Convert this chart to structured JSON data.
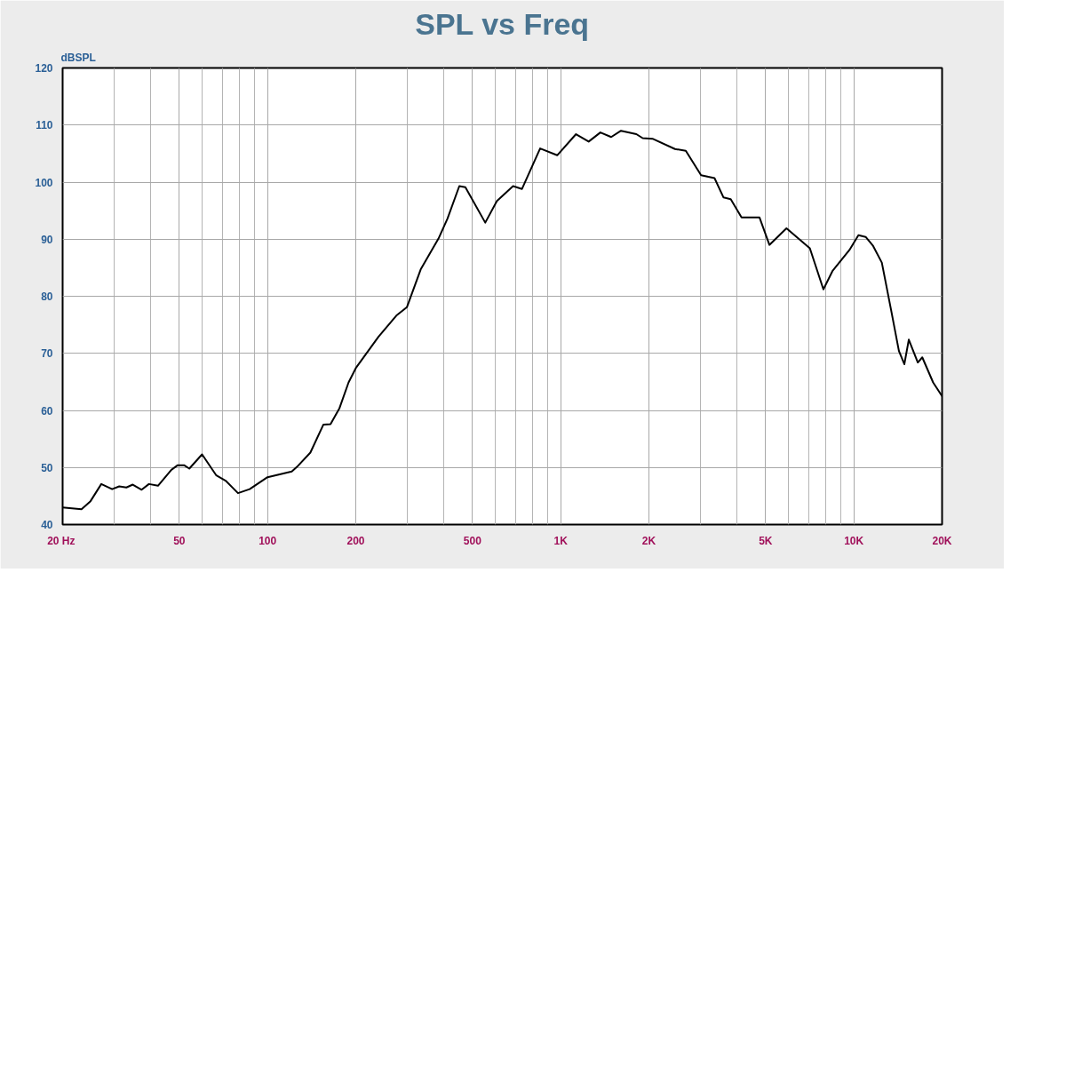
{
  "chart_data": {
    "type": "line",
    "title": "SPL vs Freq",
    "ylabel": "dBSPL",
    "log": "x",
    "grid": true,
    "marker": "none",
    "line_style": "solid",
    "xlim": [
      20,
      20000
    ],
    "ylim": [
      40,
      120
    ],
    "xticks": [
      {
        "value": 20,
        "label": "20  Hz"
      },
      {
        "value": 30,
        "label": null
      },
      {
        "value": 40,
        "label": null
      },
      50,
      {
        "value": 60,
        "label": null
      },
      {
        "value": 70,
        "label": null
      },
      {
        "value": 80,
        "label": null
      },
      {
        "value": 90,
        "label": null
      },
      100,
      200,
      {
        "value": 300,
        "label": null
      },
      {
        "value": 400,
        "label": null
      },
      500,
      {
        "value": 600,
        "label": null
      },
      {
        "value": 700,
        "label": null
      },
      {
        "value": 800,
        "label": null
      },
      {
        "value": 900,
        "label": null
      },
      {
        "value": 1000,
        "label": "1K"
      },
      {
        "value": 2000,
        "label": "2K"
      },
      {
        "value": 3000,
        "label": null
      },
      {
        "value": 4000,
        "label": null
      },
      {
        "value": 5000,
        "label": "5K"
      },
      {
        "value": 6000,
        "label": null
      },
      {
        "value": 7000,
        "label": null
      },
      {
        "value": 8000,
        "label": null
      },
      {
        "value": 9000,
        "label": null
      },
      {
        "value": 10000,
        "label": "10K"
      },
      {
        "value": 20000,
        "label": "20K"
      }
    ],
    "yticks": [
      40,
      50,
      60,
      70,
      80,
      90,
      100,
      110,
      120
    ],
    "series": [
      {
        "color": "#000000",
        "x": [
          20,
          23.2,
          24.9,
          27.1,
          29.5,
          31.2,
          33,
          34.7,
          37.2,
          39.4,
          42.3,
          47,
          49.4,
          51.9,
          54.1,
          59.8,
          66.9,
          71.9,
          79.3,
          86.9,
          100,
          121,
          126,
          140,
          155,
          164,
          176,
          189,
          200,
          239,
          275,
          299,
          333,
          383,
          411,
          451,
          473,
          553,
          606,
          688,
          738,
          851,
          973,
          1128,
          1246,
          1366,
          1487,
          1606,
          1812,
          1904,
          2057,
          2454,
          2672,
          3013,
          3348,
          3594,
          3803,
          4140,
          4768,
          5152,
          5892,
          7080,
          7874,
          8452,
          9660,
          10368,
          10972,
          11608,
          12460,
          13376,
          14252,
          14870,
          15400,
          16532,
          17120,
          18640,
          20000
        ],
        "values": [
          43.0,
          42.7,
          44.1,
          47.1,
          46.2,
          46.7,
          46.5,
          47.0,
          46.1,
          47.1,
          46.8,
          49.6,
          50.4,
          50.4,
          49.8,
          52.3,
          48.6,
          47.7,
          45.5,
          46.2,
          48.3,
          49.3,
          50.1,
          52.6,
          57.5,
          57.6,
          60.4,
          64.9,
          67.4,
          72.9,
          76.6,
          78.1,
          84.7,
          90.1,
          93.6,
          99.3,
          99.1,
          92.9,
          96.7,
          99.3,
          98.8,
          105.9,
          104.7,
          108.4,
          107.1,
          108.7,
          107.9,
          109.0,
          108.4,
          107.7,
          107.6,
          105.8,
          105.5,
          101.2,
          100.7,
          97.3,
          97.0,
          93.8,
          93.8,
          89.0,
          91.9,
          88.4,
          81.2,
          84.4,
          88.1,
          90.7,
          90.4,
          88.9,
          85.9,
          77.8,
          70.4,
          68.1,
          72.4,
          68.4,
          69.3,
          64.9,
          62.5
        ]
      }
    ]
  }
}
